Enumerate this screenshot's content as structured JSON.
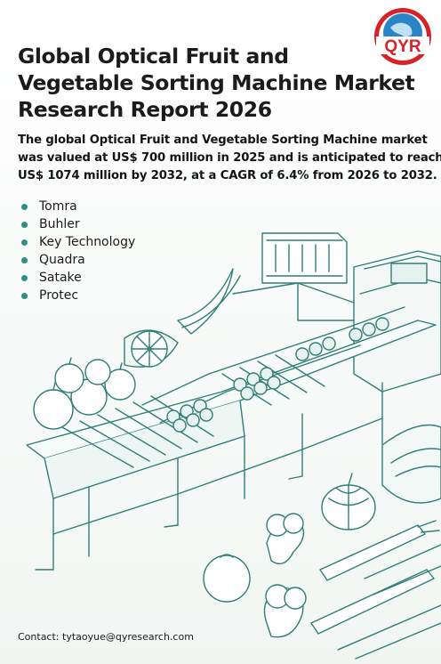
{
  "logo": {
    "text": "QYR",
    "colors": {
      "red": "#d8222a",
      "blue": "#2a84c8"
    }
  },
  "title_lines": [
    "Global Optical Fruit and",
    "Vegetable Sorting Machine Market",
    "Research Report 2026"
  ],
  "summary_lines": [
    "The global Optical Fruit and Vegetable Sorting Machine market",
    "was valued at US$ 700 million in 2025 and is anticipated to reach",
    "US$ 1074 million by 2032, at a CAGR of 6.4% from 2026 to 2032."
  ],
  "companies": [
    "Tomra",
    "Buhler",
    "Key Technology",
    "Quadra",
    "Satake",
    "Protec"
  ],
  "contact": "Contact: tytaoyue@qyresearch.com",
  "colors": {
    "line_art": "#2f7f76",
    "bullet": "#2f8f83"
  }
}
